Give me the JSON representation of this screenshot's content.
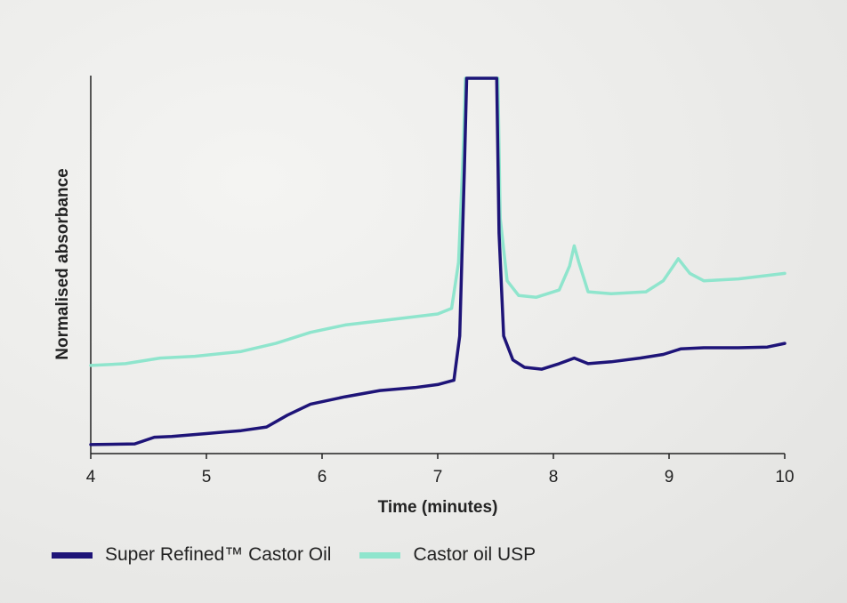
{
  "chart_data": {
    "type": "line",
    "xlabel": "Time (minutes)",
    "ylabel": "Normalised absorbance",
    "xlim": [
      4,
      10
    ],
    "ylim": [
      0,
      1
    ],
    "xticks": [
      4,
      5,
      6,
      7,
      8,
      9,
      10
    ],
    "grid": false,
    "legend_placement": "bottom-left",
    "series": [
      {
        "name": "Super Refined™ Castor Oil",
        "color": "#1e1478",
        "points": [
          [
            4.0,
            0.005
          ],
          [
            4.38,
            0.007
          ],
          [
            4.55,
            0.025
          ],
          [
            4.7,
            0.027
          ],
          [
            5.0,
            0.035
          ],
          [
            5.3,
            0.043
          ],
          [
            5.52,
            0.053
          ],
          [
            5.7,
            0.085
          ],
          [
            5.9,
            0.115
          ],
          [
            6.2,
            0.135
          ],
          [
            6.5,
            0.152
          ],
          [
            6.8,
            0.16
          ],
          [
            7.0,
            0.168
          ],
          [
            7.14,
            0.18
          ],
          [
            7.19,
            0.3
          ],
          [
            7.23,
            0.75
          ],
          [
            7.25,
            1.0
          ],
          [
            7.51,
            1.0
          ],
          [
            7.53,
            0.58
          ],
          [
            7.57,
            0.3
          ],
          [
            7.65,
            0.235
          ],
          [
            7.75,
            0.215
          ],
          [
            7.9,
            0.21
          ],
          [
            8.05,
            0.225
          ],
          [
            8.18,
            0.24
          ],
          [
            8.3,
            0.225
          ],
          [
            8.5,
            0.23
          ],
          [
            8.75,
            0.24
          ],
          [
            8.95,
            0.25
          ],
          [
            9.1,
            0.265
          ],
          [
            9.3,
            0.268
          ],
          [
            9.6,
            0.268
          ],
          [
            9.85,
            0.27
          ],
          [
            10.0,
            0.28
          ]
        ]
      },
      {
        "name": "Castor oil USP",
        "color": "#8fe5cd",
        "points": [
          [
            4.0,
            0.22
          ],
          [
            4.3,
            0.225
          ],
          [
            4.6,
            0.24
          ],
          [
            4.9,
            0.245
          ],
          [
            5.3,
            0.258
          ],
          [
            5.6,
            0.28
          ],
          [
            5.9,
            0.31
          ],
          [
            6.2,
            0.33
          ],
          [
            6.6,
            0.345
          ],
          [
            7.0,
            0.36
          ],
          [
            7.12,
            0.375
          ],
          [
            7.18,
            0.5
          ],
          [
            7.22,
            0.8
          ],
          [
            7.24,
            1.0
          ],
          [
            7.52,
            1.0
          ],
          [
            7.54,
            0.62
          ],
          [
            7.6,
            0.45
          ],
          [
            7.7,
            0.41
          ],
          [
            7.85,
            0.405
          ],
          [
            8.05,
            0.425
          ],
          [
            8.14,
            0.49
          ],
          [
            8.18,
            0.545
          ],
          [
            8.22,
            0.5
          ],
          [
            8.3,
            0.42
          ],
          [
            8.5,
            0.415
          ],
          [
            8.8,
            0.42
          ],
          [
            8.95,
            0.45
          ],
          [
            9.08,
            0.51
          ],
          [
            9.18,
            0.47
          ],
          [
            9.3,
            0.45
          ],
          [
            9.6,
            0.455
          ],
          [
            10.0,
            0.47
          ]
        ]
      }
    ]
  }
}
